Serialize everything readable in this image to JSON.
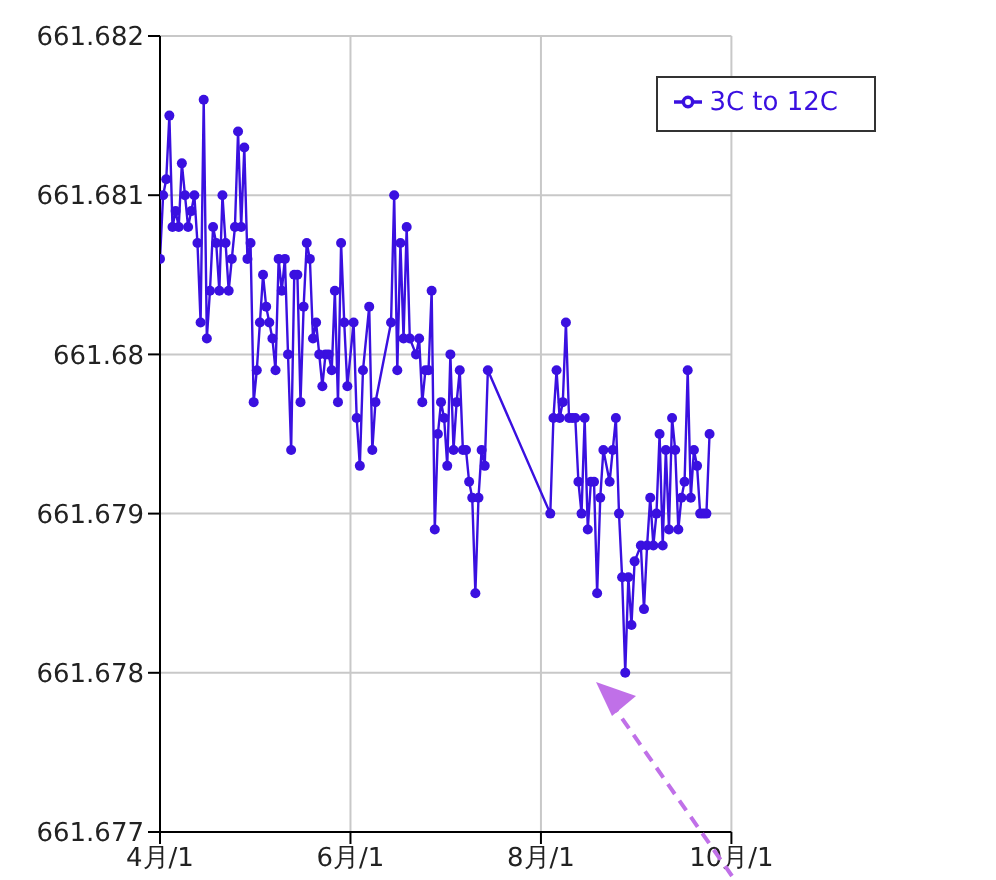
{
  "chart_data": {
    "type": "line",
    "x": [
      "--04-01",
      "--04-02",
      "--04-03",
      "--04-04",
      "--04-05",
      "--04-06",
      "--04-07",
      "--04-08",
      "--04-09",
      "--04-10",
      "--04-11",
      "--04-12",
      "--04-13",
      "--04-14",
      "--04-15",
      "--04-16",
      "--04-17",
      "--04-18",
      "--04-19",
      "--04-20",
      "--04-21",
      "--04-22",
      "--04-23",
      "--04-24",
      "--04-25",
      "--04-26",
      "--04-27",
      "--04-28",
      "--04-29",
      "--04-30",
      "--05-01",
      "--05-02",
      "--05-03",
      "--05-04",
      "--05-05",
      "--05-06",
      "--05-07",
      "--05-08",
      "--05-09",
      "--05-10",
      "--05-11",
      "--05-12",
      "--05-13",
      "--05-14",
      "--05-15",
      "--05-16",
      "--05-17",
      "--05-18",
      "--05-19",
      "--05-20",
      "--05-21",
      "--05-22",
      "--05-23",
      "--05-24",
      "--05-25",
      "--05-26",
      "--05-27",
      "--05-28",
      "--05-29",
      "--05-30",
      "--05-31",
      "--06-02",
      "--06-03",
      "--06-04",
      "--06-05",
      "--06-07",
      "--06-08",
      "--06-09",
      "--06-14",
      "--06-15",
      "--06-16",
      "--06-17",
      "--06-18",
      "--06-19",
      "--06-20",
      "--06-22",
      "--06-23",
      "--06-24",
      "--06-25",
      "--06-26",
      "--06-27",
      "--06-28",
      "--06-29",
      "--06-30",
      "--07-01",
      "--07-02",
      "--07-03",
      "--07-04",
      "--07-05",
      "--07-06",
      "--07-07",
      "--07-08",
      "--07-09",
      "--07-10",
      "--07-11",
      "--07-12",
      "--07-13",
      "--07-14",
      "--07-15",
      "--08-04",
      "--08-05",
      "--08-06",
      "--08-07",
      "--08-08",
      "--08-09",
      "--08-10",
      "--08-11",
      "--08-12",
      "--08-13",
      "--08-14",
      "--08-15",
      "--08-16",
      "--08-17",
      "--08-18",
      "--08-19",
      "--08-20",
      "--08-21",
      "--08-23",
      "--08-24",
      "--08-25",
      "--08-26",
      "--08-27",
      "--08-28",
      "--08-29",
      "--08-30",
      "--08-31",
      "--09-02",
      "--09-03",
      "--09-04",
      "--09-05",
      "--09-06",
      "--09-07",
      "--09-08",
      "--09-09",
      "--09-10",
      "--09-11",
      "--09-12",
      "--09-13",
      "--09-14",
      "--09-15",
      "--09-16",
      "--09-17",
      "--09-18",
      "--09-19",
      "--09-20",
      "--09-21",
      "--09-22",
      "--09-23",
      "--09-24"
    ],
    "series": [
      {
        "name": "3C to 12C",
        "color": "#3a10e0",
        "values": [
          661.6806,
          661.681,
          661.6811,
          661.6815,
          661.6808,
          661.6809,
          661.6808,
          661.6812,
          661.681,
          661.6808,
          661.6809,
          661.681,
          661.6807,
          661.6802,
          661.6816,
          661.6801,
          661.6804,
          661.6808,
          661.6807,
          661.6804,
          661.681,
          661.6807,
          661.6804,
          661.6806,
          661.6808,
          661.6814,
          661.6808,
          661.6813,
          661.6806,
          661.6807,
          661.6797,
          661.6799,
          661.6802,
          661.6805,
          661.6803,
          661.6802,
          661.6801,
          661.6799,
          661.6806,
          661.6804,
          661.6806,
          661.68,
          661.6794,
          661.6805,
          661.6805,
          661.6797,
          661.6803,
          661.6807,
          661.6806,
          661.6801,
          661.6802,
          661.68,
          661.6798,
          661.68,
          661.68,
          661.6799,
          661.6804,
          661.6797,
          661.6807,
          661.6802,
          661.6798,
          661.6802,
          661.6796,
          661.6793,
          661.6799,
          661.6803,
          661.6794,
          661.6797,
          661.6802,
          661.681,
          661.6799,
          661.6807,
          661.6801,
          661.6808,
          661.6801,
          661.68,
          661.6801,
          661.6797,
          661.6799,
          661.6799,
          661.6804,
          661.6789,
          661.6795,
          661.6797,
          661.6796,
          661.6793,
          661.68,
          661.6794,
          661.6797,
          661.6799,
          661.6794,
          661.6794,
          661.6792,
          661.6791,
          661.6785,
          661.6791,
          661.6794,
          661.6793,
          661.6799,
          661.679,
          661.6796,
          661.6799,
          661.6796,
          661.6797,
          661.6802,
          661.6796,
          661.6796,
          661.6796,
          661.6792,
          661.679,
          661.6796,
          661.6789,
          661.6792,
          661.6792,
          661.6785,
          661.6791,
          661.6794,
          661.6792,
          661.6794,
          661.6796,
          661.679,
          661.6786,
          661.678,
          661.6786,
          661.6783,
          661.6787,
          661.6788,
          661.6784,
          661.6788,
          661.6791,
          661.6788,
          661.679,
          661.6795,
          661.6788,
          661.6794,
          661.6789,
          661.6796,
          661.6794,
          661.6789,
          661.6791,
          661.6792,
          661.6799,
          661.6791,
          661.6794,
          661.6793,
          661.679,
          661.679,
          661.679,
          661.6795
        ]
      }
    ],
    "xlim": [
      "--04-01",
      "--10-01"
    ],
    "xticks": [
      {
        "value": "--04-01",
        "label": "4月/1"
      },
      {
        "value": "--06-01",
        "label": "6月/1"
      },
      {
        "value": "--08-01",
        "label": "8月/1"
      },
      {
        "value": "--10-01",
        "label": "10月/1"
      }
    ],
    "ylim": [
      661.677,
      661.682
    ],
    "yticks": [
      661.677,
      661.678,
      661.679,
      661.68,
      661.681,
      661.682
    ],
    "grid": true,
    "legend": "top right",
    "marker": "circle",
    "line_style": "solid"
  }
}
